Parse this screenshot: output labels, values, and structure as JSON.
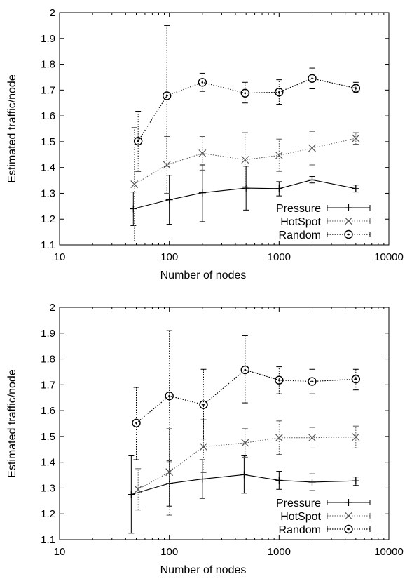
{
  "chart_data": [
    {
      "type": "line",
      "x_scale": "log",
      "xlim": [
        10,
        10000
      ],
      "ylim": [
        1.1,
        2.0
      ],
      "xlabel": "Number of nodes",
      "ylabel": "Estimated traffic/node",
      "xticks": [
        10,
        100,
        1000,
        10000
      ],
      "xtick_labels": [
        "10",
        "100",
        "1000",
        "10000"
      ],
      "yticks": [
        1.1,
        1.2,
        1.3,
        1.4,
        1.5,
        1.6,
        1.7,
        1.8,
        1.9,
        2.0
      ],
      "ytick_labels": [
        "1.1",
        "1.2",
        "1.3",
        "1.4",
        "1.5",
        "1.6",
        "1.7",
        "1.8",
        "1.9",
        "2"
      ],
      "grid": false,
      "legend_position": "bottom-right",
      "series": [
        {
          "name": "Pressure",
          "marker": "plus",
          "line": "solid",
          "x": [
            47,
            100,
            200,
            500,
            1000,
            2000,
            5000
          ],
          "y": [
            1.24,
            1.275,
            1.302,
            1.32,
            1.318,
            1.352,
            1.318
          ],
          "err_low": [
            1.175,
            1.18,
            1.19,
            1.235,
            1.29,
            1.34,
            1.305
          ],
          "err_high": [
            1.305,
            1.37,
            1.41,
            1.405,
            1.345,
            1.365,
            1.332
          ]
        },
        {
          "name": "HotSpot",
          "marker": "cross",
          "line": "dotted",
          "x": [
            48,
            95,
            200,
            490,
            1000,
            2000,
            5000
          ],
          "y": [
            1.335,
            1.41,
            1.455,
            1.43,
            1.447,
            1.475,
            1.513
          ],
          "err_low": [
            1.115,
            1.3,
            1.39,
            1.325,
            1.385,
            1.41,
            1.49
          ],
          "err_high": [
            1.555,
            1.52,
            1.52,
            1.535,
            1.51,
            1.54,
            1.535
          ]
        },
        {
          "name": "Random",
          "marker": "circle",
          "line": "dotted",
          "x": [
            52,
            95,
            200,
            490,
            1000,
            2000,
            5000
          ],
          "y": [
            1.502,
            1.678,
            1.73,
            1.688,
            1.692,
            1.745,
            1.707
          ],
          "err_low": [
            1.385,
            1.405,
            1.695,
            1.65,
            1.645,
            1.705,
            1.69
          ],
          "err_high": [
            1.618,
            1.95,
            1.765,
            1.73,
            1.74,
            1.785,
            1.73
          ]
        }
      ]
    },
    {
      "type": "line",
      "x_scale": "log",
      "xlim": [
        10,
        10000
      ],
      "ylim": [
        1.1,
        2.0
      ],
      "xlabel": "Number of nodes",
      "ylabel": "Estimated traffic/node",
      "xticks": [
        10,
        100,
        1000,
        10000
      ],
      "xtick_labels": [
        "10",
        "100",
        "1000",
        "10000"
      ],
      "yticks": [
        1.1,
        1.2,
        1.3,
        1.4,
        1.5,
        1.6,
        1.7,
        1.8,
        1.9,
        2.0
      ],
      "ytick_labels": [
        "1.1",
        "1.2",
        "1.3",
        "1.4",
        "1.5",
        "1.6",
        "1.7",
        "1.8",
        "1.9",
        "2"
      ],
      "grid": false,
      "legend_position": "bottom-right",
      "series": [
        {
          "name": "Pressure",
          "marker": "plus",
          "line": "solid",
          "x": [
            45,
            100,
            200,
            480,
            1000,
            2000,
            5000
          ],
          "y": [
            1.275,
            1.318,
            1.335,
            1.352,
            1.33,
            1.323,
            1.328
          ],
          "err_low": [
            1.125,
            1.23,
            1.26,
            1.28,
            1.295,
            1.29,
            1.31
          ],
          "err_high": [
            1.425,
            1.405,
            1.41,
            1.425,
            1.365,
            1.355,
            1.343
          ]
        },
        {
          "name": "HotSpot",
          "marker": "cross",
          "line": "dotted",
          "x": [
            52,
            100,
            205,
            490,
            1000,
            2000,
            5000
          ],
          "y": [
            1.295,
            1.362,
            1.46,
            1.475,
            1.495,
            1.495,
            1.498
          ],
          "err_low": [
            1.215,
            1.195,
            1.36,
            1.42,
            1.43,
            1.455,
            1.455
          ],
          "err_high": [
            1.375,
            1.53,
            1.565,
            1.53,
            1.56,
            1.535,
            1.54
          ]
        },
        {
          "name": "Random",
          "marker": "circle",
          "line": "dotted",
          "x": [
            50,
            100,
            205,
            490,
            1000,
            2000,
            5000
          ],
          "y": [
            1.552,
            1.657,
            1.623,
            1.758,
            1.718,
            1.713,
            1.722
          ],
          "err_low": [
            1.41,
            1.4,
            1.49,
            1.63,
            1.665,
            1.665,
            1.68
          ],
          "err_high": [
            1.69,
            1.91,
            1.76,
            1.89,
            1.77,
            1.76,
            1.76
          ]
        }
      ]
    }
  ]
}
